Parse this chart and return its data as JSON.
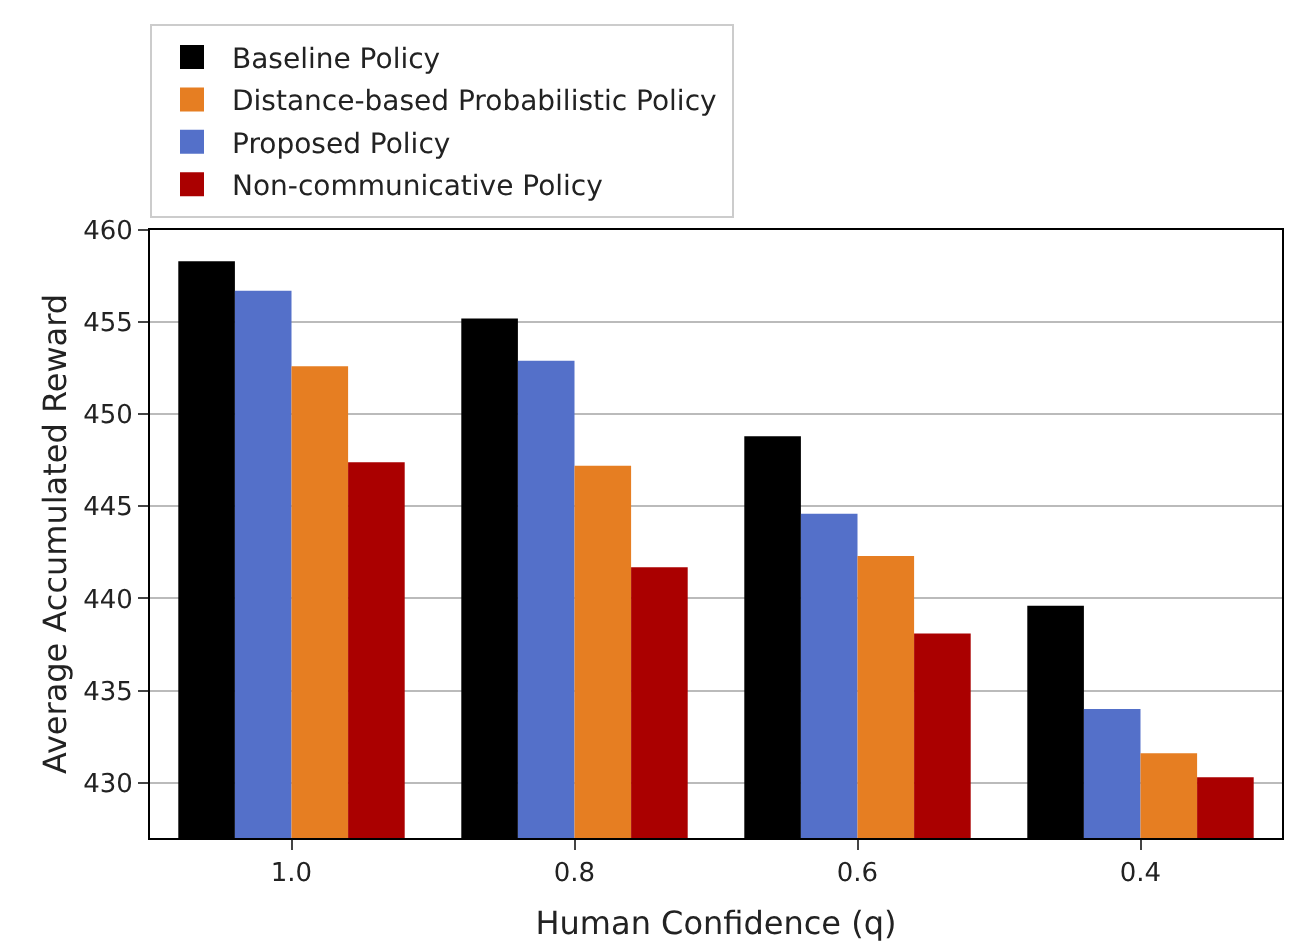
{
  "chart_data": {
    "type": "bar",
    "xlabel": "Human Confidence (q)",
    "ylabel": "Average Accumulated Reward",
    "categories": [
      "1.0",
      "0.8",
      "0.6",
      "0.4"
    ],
    "series": [
      {
        "name": "Baseline Policy",
        "color": "#000000",
        "values": [
          458.3,
          455.2,
          448.8,
          439.6
        ]
      },
      {
        "name": "Proposed Policy",
        "color": "#5470c9",
        "values": [
          456.7,
          452.9,
          444.6,
          434.0
        ]
      },
      {
        "name": "Distance-based Probabilistic Policy",
        "color": "#e67e22",
        "values": [
          452.6,
          447.2,
          442.3,
          431.6
        ]
      },
      {
        "name": "Non-communicative Policy",
        "color": "#aa0000",
        "values": [
          447.4,
          441.7,
          438.1,
          430.3
        ]
      }
    ],
    "ylim": [
      427,
      460
    ],
    "yticks": [
      430,
      435,
      440,
      445,
      450,
      455,
      460
    ],
    "grid": "y",
    "legend": "top"
  }
}
